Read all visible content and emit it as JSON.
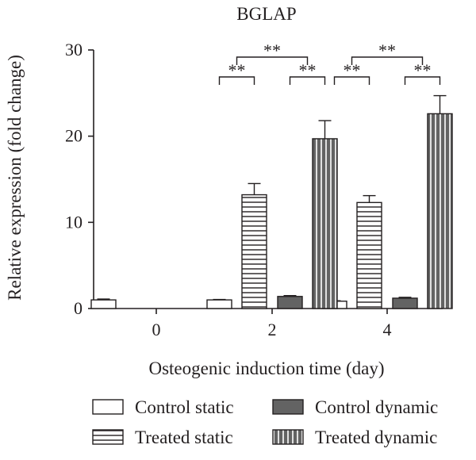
{
  "chart_data": {
    "type": "bar",
    "title": "BGLAP",
    "xlabel": "Osteogenic induction time (day)",
    "ylabel": "Relative expression (fold change)",
    "ylim": [
      0,
      30
    ],
    "yticks": [
      0,
      10,
      20,
      30
    ],
    "categories": [
      "0",
      "2",
      "4"
    ],
    "series": [
      {
        "name": "Control static",
        "color": "#ffffff",
        "pattern": "none",
        "values": [
          1.0,
          1.0,
          0.85
        ],
        "errors": [
          0.1,
          0.05,
          0.05
        ]
      },
      {
        "name": "Treated static",
        "color": "#ffffff",
        "pattern": "horizontal-lines",
        "values": [
          null,
          13.2,
          12.3
        ],
        "errors": [
          null,
          1.3,
          0.8
        ]
      },
      {
        "name": "Control dynamic",
        "color": "#636363",
        "pattern": "none",
        "values": [
          null,
          1.4,
          1.2
        ],
        "errors": [
          null,
          0.1,
          0.1
        ]
      },
      {
        "name": "Treated dynamic",
        "color": "#636363",
        "pattern": "vertical-lines",
        "values": [
          null,
          19.7,
          22.6
        ],
        "errors": [
          null,
          2.1,
          2.1
        ]
      }
    ],
    "significance": [
      {
        "category": "2",
        "from": "Control static",
        "to": "Treated static",
        "label": "**",
        "level": 0
      },
      {
        "category": "2",
        "from": "Control dynamic",
        "to": "Treated dynamic",
        "label": "**",
        "level": 0
      },
      {
        "category": "2",
        "from": "Treated static",
        "to": "Treated dynamic",
        "label": "**",
        "level": 1
      },
      {
        "category": "4",
        "from": "Control static",
        "to": "Treated static",
        "label": "**",
        "level": 0
      },
      {
        "category": "4",
        "from": "Control dynamic",
        "to": "Treated dynamic",
        "label": "**",
        "level": 0
      },
      {
        "category": "4",
        "from": "Treated static",
        "to": "Treated dynamic",
        "label": "**",
        "level": 1
      }
    ],
    "legend": {
      "placement": "bottom",
      "entries": [
        {
          "label": "Control static",
          "series": 0
        },
        {
          "label": "Control dynamic",
          "series": 2
        },
        {
          "label": "Treated static",
          "series": 1
        },
        {
          "label": "Treated dynamic",
          "series": 3
        }
      ]
    },
    "grid": false
  }
}
